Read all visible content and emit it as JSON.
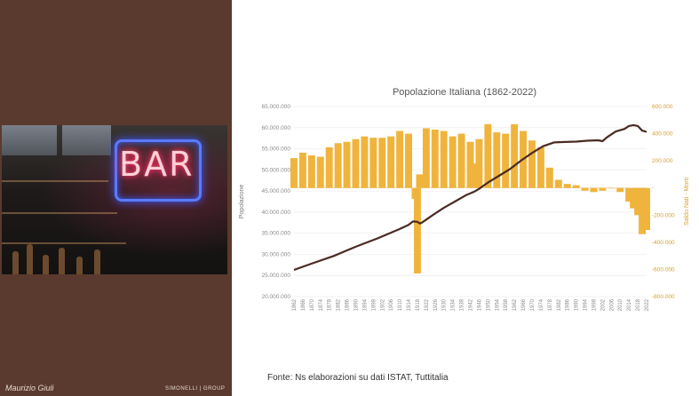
{
  "slide": {
    "author": "Maurizio Giuli",
    "brand": "SIMONELLI | GROUP",
    "photo_sign": "BAR",
    "source": "Fonte: Ns elaborazioni su dati ISTAT, Tuttitalia"
  },
  "colors": {
    "sidebar": "#5a3a2e",
    "population_line": "#4a2a22",
    "balance_bars": "#f0b43c"
  },
  "chart_data": {
    "type": "line+bar",
    "title": "Popolazione Italiana (1862-2022)",
    "ylabel": "Popolazione",
    "y2label": "Saldo Nati - Morti",
    "ylim": [
      20000000,
      65000000
    ],
    "y2lim": [
      -800000,
      600000
    ],
    "yticks": [
      "20.000.000",
      "25.000.000",
      "30.000.000",
      "35.000.000",
      "40.000.000",
      "45.000.000",
      "50.000.000",
      "55.000.000",
      "60.000.000",
      "65.000.000"
    ],
    "y2ticks": [
      "-800.000",
      "-600.000",
      "-400.000",
      "-200.000",
      "-",
      "200.000",
      "400.000",
      "600.000"
    ],
    "xticks": [
      "1862",
      "1866",
      "1870",
      "1874",
      "1878",
      "1882",
      "1886",
      "1890",
      "1894",
      "1898",
      "1902",
      "1906",
      "1910",
      "1914",
      "1918",
      "1922",
      "1926",
      "1930",
      "1934",
      "1938",
      "1942",
      "1946",
      "1950",
      "1954",
      "1958",
      "1962",
      "1966",
      "1970",
      "1974",
      "1978",
      "1982",
      "1986",
      "1990",
      "1994",
      "1998",
      "2002",
      "2006",
      "2010",
      "2014",
      "2018",
      "2022"
    ],
    "series": [
      {
        "name": "Popolazione",
        "type": "line",
        "x": [
          1862,
          1870,
          1880,
          1890,
          1900,
          1910,
          1914,
          1915,
          1916,
          1918,
          1919,
          1920,
          1925,
          1930,
          1935,
          1940,
          1944,
          1946,
          1950,
          1955,
          1960,
          1965,
          1970,
          1975,
          1980,
          1985,
          1990,
          1995,
          2000,
          2002,
          2004,
          2008,
          2012,
          2014,
          2016,
          2018,
          2020,
          2022
        ],
        "y": [
          26300000,
          27800000,
          29600000,
          31800000,
          33800000,
          36000000,
          37000000,
          37400000,
          37800000,
          37700000,
          37300000,
          37500000,
          39300000,
          41000000,
          42500000,
          44000000,
          44900000,
          45500000,
          47000000,
          48600000,
          50200000,
          52200000,
          54000000,
          55600000,
          56500000,
          56600000,
          56700000,
          56900000,
          57000000,
          56800000,
          57700000,
          59100000,
          59700000,
          60400000,
          60600000,
          60400000,
          59300000,
          59000000
        ]
      },
      {
        "name": "Saldo Nati - Morti",
        "type": "bar",
        "x": [
          1862,
          1866,
          1870,
          1874,
          1878,
          1882,
          1886,
          1890,
          1894,
          1898,
          1902,
          1906,
          1910,
          1914,
          1917,
          1918,
          1919,
          1922,
          1926,
          1930,
          1934,
          1938,
          1942,
          1944,
          1946,
          1950,
          1954,
          1958,
          1962,
          1966,
          1970,
          1974,
          1978,
          1982,
          1986,
          1990,
          1994,
          1998,
          2002,
          2006,
          2010,
          2014,
          2016,
          2018,
          2020,
          2022
        ],
        "y": [
          220000,
          260000,
          240000,
          230000,
          300000,
          330000,
          340000,
          360000,
          380000,
          370000,
          370000,
          380000,
          420000,
          400000,
          -80000,
          -630000,
          100000,
          440000,
          430000,
          420000,
          380000,
          400000,
          340000,
          180000,
          360000,
          470000,
          410000,
          400000,
          470000,
          420000,
          350000,
          300000,
          150000,
          60000,
          30000,
          20000,
          -20000,
          -30000,
          -20000,
          0,
          -30000,
          -100000,
          -150000,
          -200000,
          -340000,
          -310000
        ]
      }
    ]
  }
}
